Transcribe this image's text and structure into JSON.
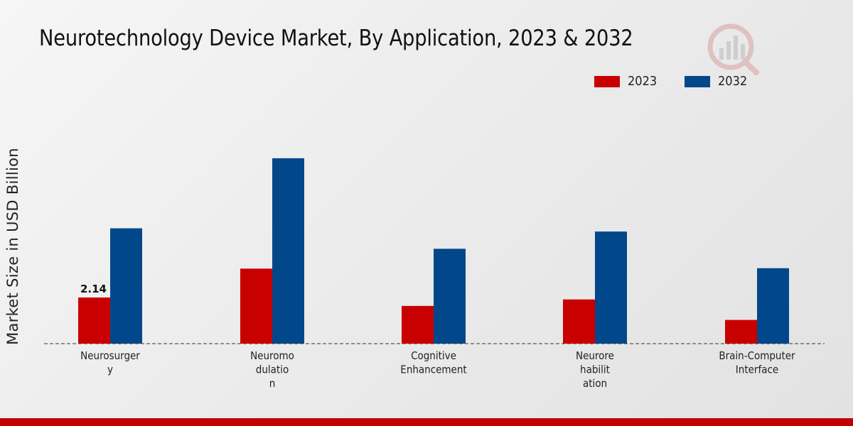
{
  "colors": {
    "series_2023": "#c80000",
    "series_2032": "#02478a",
    "footer": "#c00000"
  },
  "chart_data": {
    "type": "bar",
    "title": "Neurotechnology Device Market, By Application, 2023 & 2032",
    "ylabel": "Market Size in USD Billion",
    "xlabel": "",
    "categories": [
      [
        "Neurosurger",
        "y"
      ],
      [
        "Neuromo",
        "dulatio",
        "n"
      ],
      [
        "Cognitive",
        "Enhancement"
      ],
      [
        "Neurore",
        "habilit",
        "ation"
      ],
      [
        "Brain-Computer",
        "Interface"
      ]
    ],
    "series": [
      {
        "name": "2023",
        "values": [
          2.14,
          3.48,
          1.75,
          2.05,
          1.1
        ]
      },
      {
        "name": "2032",
        "values": [
          5.35,
          8.6,
          4.4,
          5.2,
          3.5
        ]
      }
    ],
    "ylim": [
      0,
      11
    ],
    "data_labels": [
      {
        "series": 0,
        "index": 0,
        "text": "2.14"
      }
    ],
    "legend_position": "top-right",
    "grid": false
  }
}
